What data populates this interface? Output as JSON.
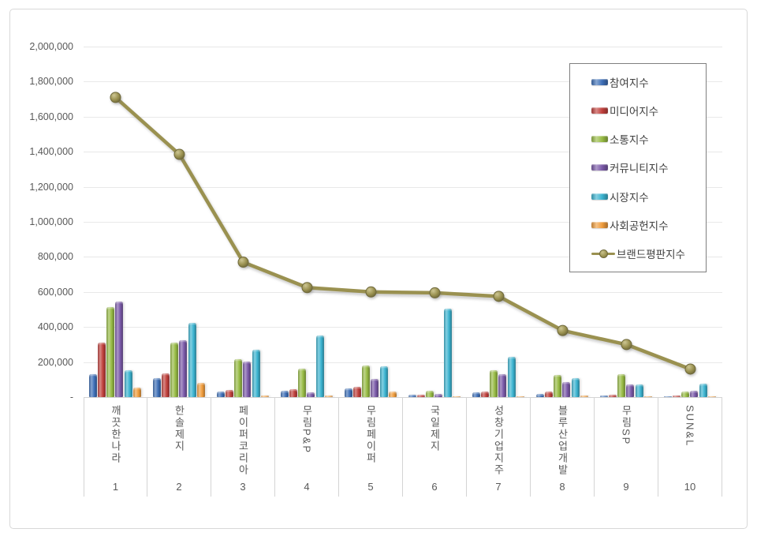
{
  "chart_data": {
    "type": "bar",
    "title": "",
    "categories": [
      "깨끗한나라",
      "한솔제지",
      "페이퍼코리아",
      "무림P&P",
      "무림페이퍼",
      "국일제지",
      "성창기업지주",
      "블루산업개발",
      "무림SP",
      "SUN&L"
    ],
    "category_ranks": [
      "1",
      "2",
      "3",
      "4",
      "5",
      "6",
      "7",
      "8",
      "9",
      "10"
    ],
    "series": [
      {
        "name": "참여지수",
        "type": "bar",
        "color": "#3e6fb7",
        "values": [
          130000,
          110000,
          30000,
          35000,
          50000,
          15000,
          25000,
          20000,
          10000,
          5000
        ]
      },
      {
        "name": "미디어지수",
        "type": "bar",
        "color": "#c0403c",
        "values": [
          310000,
          135000,
          40000,
          45000,
          60000,
          15000,
          30000,
          30000,
          15000,
          10000
        ]
      },
      {
        "name": "소통지수",
        "type": "bar",
        "color": "#97bb44",
        "values": [
          515000,
          310000,
          215000,
          160000,
          180000,
          35000,
          155000,
          125000,
          130000,
          30000
        ]
      },
      {
        "name": "커뮤니티지수",
        "type": "bar",
        "color": "#7a59a8",
        "values": [
          545000,
          325000,
          205000,
          25000,
          105000,
          20000,
          130000,
          85000,
          70000,
          35000
        ]
      },
      {
        "name": "시장지수",
        "type": "bar",
        "color": "#3bb3d0",
        "values": [
          155000,
          425000,
          270000,
          350000,
          175000,
          505000,
          230000,
          110000,
          70000,
          75000
        ]
      },
      {
        "name": "사회공헌지수",
        "type": "bar",
        "color": "#f09c3c",
        "values": [
          55000,
          80000,
          10000,
          10000,
          30000,
          5000,
          5000,
          10000,
          5000,
          5000
        ]
      },
      {
        "name": "브랜드평판지수",
        "type": "line",
        "color": "#9a9150",
        "values": [
          1710000,
          1385000,
          770000,
          625000,
          600000,
          595000,
          575000,
          380000,
          300000,
          160000
        ]
      }
    ],
    "ylim": [
      0,
      2000000
    ],
    "ytick_step": 200000,
    "ytick_labels_bottom_up": [
      "-",
      "200,000",
      "400,000",
      "600,000",
      "800,000",
      "1,000,000",
      "1,200,000",
      "1,400,000",
      "1,600,000",
      "1,800,000",
      "2,000,000"
    ],
    "grid": true,
    "legend_position": "upper-right"
  }
}
